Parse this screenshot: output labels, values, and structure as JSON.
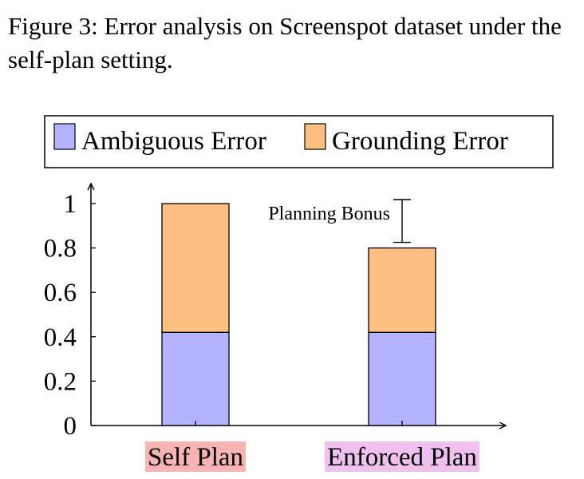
{
  "caption": "Figure 3: Error analysis on Screenspot dataset under the self-plan setting.",
  "chart_data": {
    "type": "bar",
    "stacked": true,
    "categories": [
      "Self Plan",
      "Enforced Plan"
    ],
    "series": [
      {
        "name": "Ambiguous Error",
        "values": [
          0.42,
          0.42
        ],
        "color": "#b3b3ff"
      },
      {
        "name": "Grounding Error",
        "values": [
          0.58,
          0.38
        ],
        "color": "#ffbf80"
      }
    ],
    "category_highlight_colors": [
      "#f7b2b2",
      "#f0c0f0"
    ],
    "ylim": [
      0,
      1.05
    ],
    "yticks": [
      "0",
      "0.2",
      "0.4",
      "0.6",
      "0.8",
      "1"
    ],
    "ytick_values": [
      0,
      0.2,
      0.4,
      0.6,
      0.8,
      1
    ],
    "legend_position": "top",
    "grid": false,
    "annotation": {
      "text": "Planning Bonus",
      "from": 0.8,
      "to": 1.0
    }
  }
}
